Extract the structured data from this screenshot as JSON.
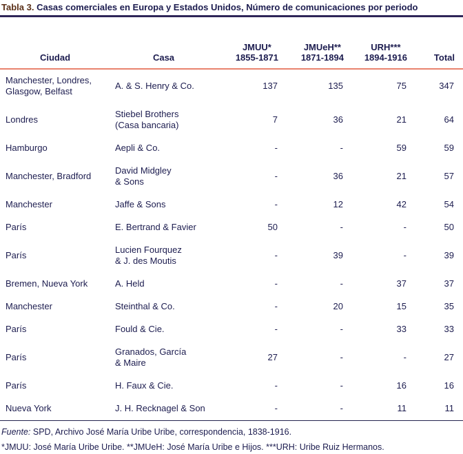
{
  "colors": {
    "text_navy": "#1c1c4f",
    "title_label_brown": "#5a3018",
    "top_rule": "#2e2558",
    "header_rule_salmon": "#e8826d",
    "bottom_rule": "#23234e",
    "background": "#ffffff"
  },
  "title": {
    "label": "Tabla 3.",
    "text": "Casas comerciales en Europa y Estados Unidos, Número de comunicaciones por periodo"
  },
  "table": {
    "columns": [
      {
        "label": "Ciudad"
      },
      {
        "label": "Casa"
      },
      {
        "label": "JMUU*",
        "period": "1855-1871"
      },
      {
        "label": "JMUeH**",
        "period": "1871-1894"
      },
      {
        "label": "URH***",
        "period": "1894-1916"
      },
      {
        "label": "Total"
      }
    ],
    "rows": [
      {
        "ciudad": [
          "Manchester, Londres,",
          "Glasgow, Belfast"
        ],
        "casa": "A. & S. Henry & Co.",
        "jmuu": "137",
        "jmueh": "135",
        "urh": "75",
        "total": "347"
      },
      {
        "ciudad": "Londres",
        "casa": [
          "Stiebel Brothers",
          "(Casa bancaria)"
        ],
        "jmuu": "7",
        "jmueh": "36",
        "urh": "21",
        "total": "64"
      },
      {
        "ciudad": "Hamburgo",
        "casa": "Aepli & Co.",
        "jmuu": "-",
        "jmueh": "-",
        "urh": "59",
        "total": "59"
      },
      {
        "ciudad": "Manchester, Bradford",
        "casa": [
          "David Midgley",
          "& Sons"
        ],
        "jmuu": "-",
        "jmueh": "36",
        "urh": "21",
        "total": "57"
      },
      {
        "ciudad": "Manchester",
        "casa": "Jaffe & Sons",
        "jmuu": "-",
        "jmueh": "12",
        "urh": "42",
        "total": "54"
      },
      {
        "ciudad": "París",
        "casa": "E. Bertrand & Favier",
        "jmuu": "50",
        "jmueh": "-",
        "urh": "-",
        "total": "50"
      },
      {
        "ciudad": "París",
        "casa": [
          "Lucien Fourquez",
          "& J. des Moutis"
        ],
        "jmuu": "-",
        "jmueh": "39",
        "urh": "-",
        "total": "39"
      },
      {
        "ciudad": "Bremen, Nueva York",
        "casa": "A. Held",
        "jmuu": "-",
        "jmueh": "-",
        "urh": "37",
        "total": "37"
      },
      {
        "ciudad": "Manchester",
        "casa": "Steinthal & Co.",
        "jmuu": "-",
        "jmueh": "20",
        "urh": "15",
        "total": "35"
      },
      {
        "ciudad": "París",
        "casa": "Fould & Cie.",
        "jmuu": "-",
        "jmueh": "-",
        "urh": "33",
        "total": "33"
      },
      {
        "ciudad": "París",
        "casa": [
          "Granados, García",
          "& Maire"
        ],
        "jmuu": "27",
        "jmueh": "-",
        "urh": "-",
        "total": "27"
      },
      {
        "ciudad": "París",
        "casa": "H. Faux & Cie.",
        "jmuu": "-",
        "jmueh": "-",
        "urh": "16",
        "total": "16"
      },
      {
        "ciudad": "Nueva York",
        "casa": "J. H. Recknagel & Son",
        "jmuu": "-",
        "jmueh": "-",
        "urh": "11",
        "total": "11"
      }
    ]
  },
  "footer": {
    "source_label": "Fuente:",
    "source_text": "SPD, Archivo José María Uribe Uribe, correspondencia, 1838-1916.",
    "notes": "*JMUU: José María Uribe Uribe. **JMUeH: José María Uribe e Hijos. ***URH: Uribe Ruiz Hermanos."
  }
}
